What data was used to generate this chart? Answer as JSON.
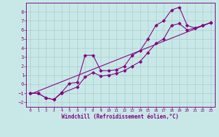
{
  "xlabel": "Windchill (Refroidissement éolien,°C)",
  "bg_color": "#c8e8e8",
  "grid_color": "#aacccc",
  "line_color": "#800080",
  "xlim": [
    -0.5,
    23.5
  ],
  "ylim": [
    -2.5,
    9.0
  ],
  "xticks": [
    0,
    1,
    2,
    3,
    4,
    5,
    6,
    7,
    8,
    9,
    10,
    11,
    12,
    13,
    14,
    15,
    16,
    17,
    18,
    19,
    20,
    21,
    22,
    23
  ],
  "yticks": [
    -2,
    -1,
    0,
    1,
    2,
    3,
    4,
    5,
    6,
    7,
    8
  ],
  "series1_x": [
    0,
    1,
    2,
    3,
    4,
    5,
    6,
    7,
    8,
    9,
    10,
    11,
    12,
    13,
    14,
    15,
    16,
    17,
    18,
    19,
    20,
    21,
    22,
    23
  ],
  "series1_y": [
    -1.0,
    -1.0,
    -1.5,
    -1.7,
    -0.9,
    0.1,
    0.2,
    3.2,
    3.2,
    1.5,
    1.5,
    1.6,
    2.0,
    3.2,
    3.7,
    5.0,
    6.5,
    7.0,
    8.2,
    8.5,
    6.5,
    6.2,
    6.5,
    6.8
  ],
  "series2_x": [
    0,
    1,
    2,
    3,
    4,
    6,
    7,
    8,
    9,
    10,
    11,
    12,
    13,
    14,
    15,
    16,
    17,
    18,
    19,
    20,
    21,
    22,
    23
  ],
  "series2_y": [
    -1.0,
    -1.0,
    -1.5,
    -1.7,
    -1.0,
    -0.3,
    0.8,
    1.3,
    0.9,
    1.0,
    1.2,
    1.5,
    2.0,
    2.5,
    3.5,
    4.5,
    5.0,
    6.5,
    6.7,
    6.0,
    6.2,
    6.5,
    6.8
  ],
  "series3_x": [
    0,
    23
  ],
  "series3_y": [
    -1.1,
    6.8
  ],
  "marker_size": 2.5,
  "line_width": 0.8
}
